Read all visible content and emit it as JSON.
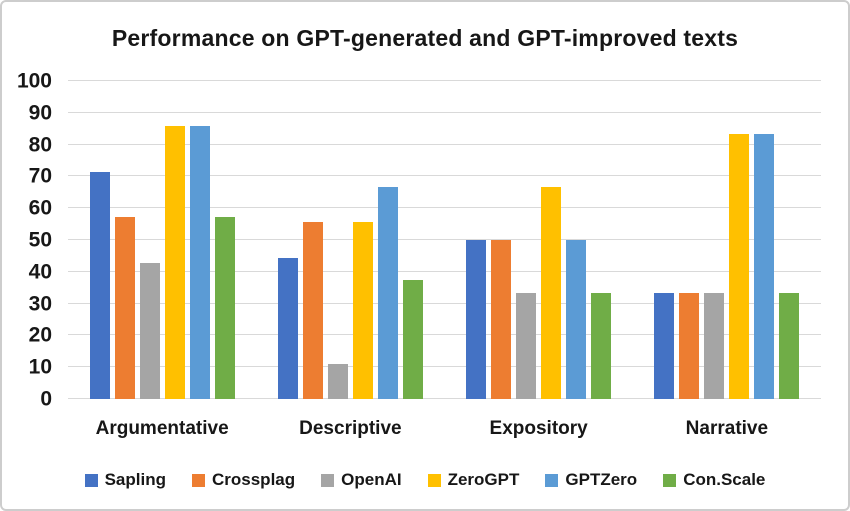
{
  "chart_data": {
    "type": "bar",
    "title": "Performance on GPT-generated and GPT-improved texts",
    "categories": [
      "Argumentative",
      "Descriptive",
      "Expository",
      "Narrative"
    ],
    "series": [
      {
        "name": "Sapling",
        "color": "#4472C4",
        "values": [
          71.4,
          44.4,
          50.0,
          33.3
        ]
      },
      {
        "name": "Crossplag",
        "color": "#ED7D31",
        "values": [
          57.1,
          55.6,
          50.0,
          33.3
        ]
      },
      {
        "name": "OpenAI",
        "color": "#A5A5A5",
        "values": [
          42.9,
          11.1,
          33.3,
          33.3
        ]
      },
      {
        "name": "ZeroGPT",
        "color": "#FFC000",
        "values": [
          85.7,
          55.6,
          66.7,
          83.3
        ]
      },
      {
        "name": "GPTZero",
        "color": "#5B9BD5",
        "values": [
          85.7,
          66.7,
          50.0,
          83.3
        ]
      },
      {
        "name": "Con.Scale",
        "color": "#70AD47",
        "values": [
          57.1,
          37.5,
          33.3,
          33.3
        ]
      }
    ],
    "y_axis": {
      "min": 0,
      "max": 100,
      "step": 10,
      "ticks": [
        "0",
        "10",
        "20",
        "30",
        "40",
        "50",
        "60",
        "70",
        "80",
        "90",
        "100"
      ]
    },
    "xlabel": "",
    "ylabel": "",
    "grid": true,
    "gridline_color": "#D9D9D9",
    "legend_position": "bottom",
    "text_color": "#171717",
    "frame_border_color": "#CDCDCD"
  }
}
